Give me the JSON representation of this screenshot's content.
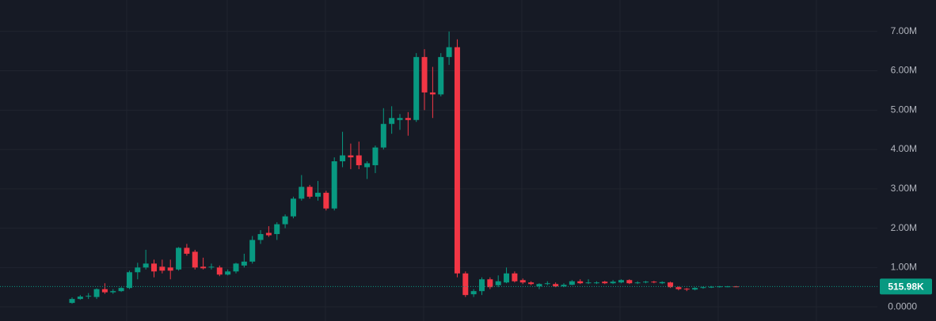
{
  "chart_data": {
    "type": "candlestick",
    "up_color": "#089981",
    "down_color": "#f23645",
    "grid": true,
    "ylim": [
      -360000,
      7800000
    ],
    "yticks": [
      {
        "value": 0,
        "label": "0.0000"
      },
      {
        "value": 1000000,
        "label": "1.00M"
      },
      {
        "value": 2000000,
        "label": "2.00M"
      },
      {
        "value": 3000000,
        "label": "3.00M"
      },
      {
        "value": 4000000,
        "label": "4.00M"
      },
      {
        "value": 5000000,
        "label": "5.00M"
      },
      {
        "value": 6000000,
        "label": "6.00M"
      },
      {
        "value": 7000000,
        "label": "7.00M"
      }
    ],
    "last_price": {
      "value": 515980,
      "label": "515.98K"
    },
    "open": [
      100000,
      200000,
      260000,
      250000,
      450000,
      370000,
      400000,
      480000,
      880000,
      1000000,
      1100000,
      1020000,
      1000000,
      950000,
      1500000,
      1400000,
      1020000,
      1000000,
      1000000,
      820000,
      900000,
      1050000,
      1150000,
      1700000,
      1880000,
      1850000,
      2100000,
      2300000,
      2750000,
      3050000,
      2800000,
      2900000,
      2500000,
      3700000,
      3850000,
      3850000,
      3550000,
      3600000,
      4050000,
      4650000,
      4750000,
      4800000,
      4750000,
      6350000,
      5450000,
      5400000,
      6350000,
      6600000,
      850000,
      320000,
      400000,
      700000,
      550000,
      620000,
      850000,
      680000,
      620000,
      520000,
      580000,
      580000,
      520000,
      560000,
      650000,
      600000,
      600000,
      640000,
      600000,
      620000,
      680000,
      600000,
      620000,
      640000,
      600000,
      620000,
      500000,
      460000,
      440000,
      480000,
      490000,
      500000,
      510000,
      520000
    ],
    "high": [
      240000,
      300000,
      350000,
      470000,
      600000,
      450000,
      500000,
      920000,
      1120000,
      1450000,
      1200000,
      1200000,
      1200000,
      1520000,
      1600000,
      1450000,
      1250000,
      1100000,
      1050000,
      950000,
      1120000,
      1350000,
      1800000,
      1950000,
      2050000,
      2150000,
      2350000,
      2800000,
      3350000,
      3100000,
      3200000,
      2950000,
      3800000,
      4450000,
      4150000,
      4200000,
      3700000,
      4100000,
      5050000,
      5100000,
      4900000,
      4950000,
      6450000,
      6550000,
      6100000,
      6450000,
      7000000,
      6800000,
      900000,
      450000,
      750000,
      750000,
      800000,
      1000000,
      900000,
      720000,
      650000,
      600000,
      650000,
      620000,
      600000,
      680000,
      700000,
      700000,
      650000,
      660000,
      680000,
      700000,
      700000,
      650000,
      660000,
      660000,
      650000,
      640000,
      520000,
      480000,
      500000,
      520000,
      530000,
      530000,
      530000,
      530000
    ],
    "low": [
      80000,
      180000,
      200000,
      200000,
      330000,
      330000,
      380000,
      450000,
      700000,
      950000,
      750000,
      850000,
      700000,
      920000,
      1300000,
      950000,
      950000,
      950000,
      780000,
      800000,
      850000,
      1000000,
      1100000,
      1600000,
      1780000,
      1700000,
      2000000,
      2250000,
      2700000,
      2750000,
      2700000,
      2450000,
      2450000,
      3550000,
      3500000,
      3500000,
      3250000,
      3400000,
      4000000,
      4400000,
      4500000,
      4350000,
      4700000,
      5000000,
      4800000,
      5350000,
      6150000,
      750000,
      250000,
      250000,
      300000,
      450000,
      500000,
      600000,
      620000,
      580000,
      550000,
      450000,
      550000,
      500000,
      500000,
      550000,
      580000,
      580000,
      580000,
      580000,
      580000,
      600000,
      580000,
      580000,
      600000,
      600000,
      580000,
      480000,
      420000,
      400000,
      420000,
      460000,
      480000,
      490000,
      500000,
      500000
    ],
    "close": [
      200000,
      260000,
      280000,
      450000,
      370000,
      400000,
      480000,
      880000,
      1000000,
      1100000,
      900000,
      920000,
      920000,
      1500000,
      1350000,
      1000000,
      980000,
      1020000,
      820000,
      900000,
      1100000,
      1150000,
      1700000,
      1850000,
      1820000,
      2100000,
      2300000,
      2750000,
      3050000,
      2800000,
      2900000,
      2500000,
      3700000,
      3850000,
      3800000,
      3600000,
      3650000,
      4050000,
      4650000,
      4800000,
      4800000,
      4750000,
      6350000,
      5450000,
      5400000,
      6350000,
      6600000,
      850000,
      300000,
      400000,
      700000,
      500000,
      650000,
      850000,
      650000,
      620000,
      580000,
      580000,
      600000,
      520000,
      560000,
      650000,
      600000,
      620000,
      620000,
      600000,
      640000,
      680000,
      600000,
      620000,
      640000,
      620000,
      630000,
      500000,
      450000,
      440000,
      480000,
      500000,
      510000,
      520000,
      520000,
      515980
    ]
  }
}
